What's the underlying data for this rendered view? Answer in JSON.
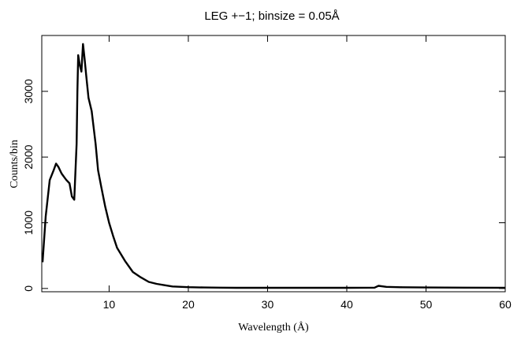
{
  "chart_data": {
    "type": "line",
    "title": "LEG +−1; binsize = 0.05Å",
    "xlabel": "Wavelength (Å)",
    "ylabel": "Counts/bin",
    "xlim": [
      1.5,
      60
    ],
    "ylim": [
      -50,
      3850
    ],
    "x_ticks": [
      10,
      20,
      30,
      40,
      50,
      60
    ],
    "y_ticks": [
      0,
      1000,
      2000,
      3000
    ],
    "grid": false,
    "series": [
      {
        "x": [
          1.6,
          2.0,
          2.5,
          3.0,
          3.3,
          3.6,
          4.0,
          4.3,
          4.6,
          5.0,
          5.3,
          5.6,
          5.9,
          6.0,
          6.1,
          6.3,
          6.5,
          6.7,
          6.9,
          7.1,
          7.4,
          7.8,
          8.0,
          8.3,
          8.6,
          9.0,
          9.5,
          10.0,
          10.5,
          11.0,
          11.5,
          12.0,
          13.0,
          14.0,
          15.0,
          16.0,
          17.0,
          18.0,
          20.0,
          22.0,
          24.0,
          26.0,
          30.0,
          35.0,
          40.0,
          43.5,
          44.0,
          45.0,
          47.0,
          50.0,
          55.0,
          60.0
        ],
        "y": [
          400,
          1100,
          1650,
          1800,
          1900,
          1850,
          1750,
          1700,
          1650,
          1600,
          1400,
          1350,
          2200,
          3000,
          3550,
          3400,
          3300,
          3720,
          3500,
          3250,
          2900,
          2700,
          2500,
          2200,
          1800,
          1550,
          1250,
          1000,
          800,
          620,
          520,
          420,
          250,
          170,
          100,
          70,
          50,
          30,
          20,
          15,
          12,
          10,
          10,
          10,
          10,
          12,
          40,
          25,
          18,
          15,
          12,
          10
        ]
      }
    ]
  }
}
